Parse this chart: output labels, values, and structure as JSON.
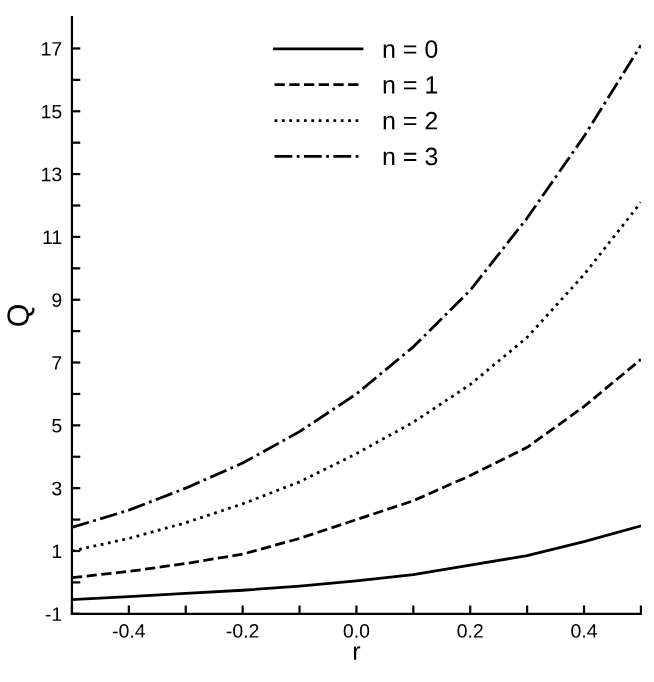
{
  "chart_data": {
    "type": "line",
    "xlabel": "r",
    "ylabel": "Q",
    "x": [
      -0.5,
      -0.4,
      -0.3,
      -0.2,
      -0.1,
      0.0,
      0.1,
      0.2,
      0.3,
      0.4,
      0.5
    ],
    "series": [
      {
        "name": "n = 0",
        "color": "#000000",
        "line_style": "solid",
        "values": [
          -0.55,
          -0.45,
          -0.35,
          -0.25,
          -0.12,
          0.05,
          0.25,
          0.55,
          0.85,
          1.3,
          1.8
        ]
      },
      {
        "name": "n = 1",
        "color": "#000000",
        "line_style": "dashed",
        "values": [
          0.15,
          0.35,
          0.6,
          0.9,
          1.4,
          2.0,
          2.6,
          3.4,
          4.3,
          5.6,
          7.1
        ]
      },
      {
        "name": "n = 2",
        "color": "#000000",
        "line_style": "dotted",
        "values": [
          1.0,
          1.4,
          1.9,
          2.5,
          3.2,
          4.1,
          5.1,
          6.3,
          7.8,
          9.8,
          12.1
        ]
      },
      {
        "name": "n = 3",
        "color": "#000000",
        "line_style": "dashdot",
        "values": [
          1.75,
          2.3,
          3.0,
          3.8,
          4.8,
          6.0,
          7.5,
          9.3,
          11.6,
          14.2,
          17.1
        ]
      }
    ],
    "xlim": [
      -0.5,
      0.5
    ],
    "ylim": [
      -1,
      18
    ],
    "xticks": [
      {
        "value": -0.5,
        "label": null
      },
      {
        "value": -0.4,
        "label": "-0.4"
      },
      {
        "value": -0.3,
        "label": null
      },
      {
        "value": -0.2,
        "label": "-0.2"
      },
      {
        "value": -0.1,
        "label": null
      },
      {
        "value": 0.0,
        "label": "0.0"
      },
      {
        "value": 0.1,
        "label": null
      },
      {
        "value": 0.2,
        "label": "0.2"
      },
      {
        "value": 0.3,
        "label": null
      },
      {
        "value": 0.4,
        "label": "0.4"
      },
      {
        "value": 0.5,
        "label": null
      }
    ],
    "yticks": [
      -1,
      {
        "value": 0,
        "label": null
      },
      1,
      {
        "value": 2,
        "label": null
      },
      3,
      {
        "value": 4,
        "label": null
      },
      5,
      {
        "value": 6,
        "label": null
      },
      7,
      {
        "value": 8,
        "label": null
      },
      9,
      {
        "value": 10,
        "label": null
      },
      11,
      {
        "value": 12,
        "label": null
      },
      13,
      {
        "value": 14,
        "label": null
      },
      15,
      {
        "value": 16,
        "label": null
      },
      17
    ],
    "legend": "top",
    "grid": false,
    "marker": "none"
  }
}
